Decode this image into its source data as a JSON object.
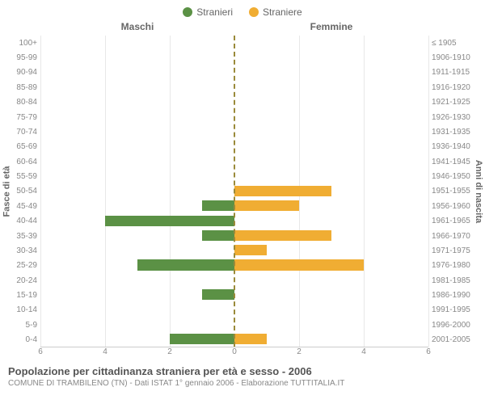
{
  "legend": {
    "male": "Stranieri",
    "female": "Straniere"
  },
  "colors": {
    "male": "#5b9145",
    "female": "#f0ad33",
    "grid": "#e8e8e8",
    "center": "#9a8a3a",
    "text": "#666666",
    "muted": "#888888",
    "bg": "#ffffff"
  },
  "headers": {
    "left": "Maschi",
    "right": "Femmine"
  },
  "axis_labels": {
    "left": "Fasce di età",
    "right": "Anni di nascita"
  },
  "x_axis": {
    "max": 6,
    "ticks_left": [
      6,
      4,
      2,
      0
    ],
    "ticks_right": [
      0,
      2,
      4,
      6
    ]
  },
  "age_groups": [
    "100+",
    "95-99",
    "90-94",
    "85-89",
    "80-84",
    "75-79",
    "70-74",
    "65-69",
    "60-64",
    "55-59",
    "50-54",
    "45-49",
    "40-44",
    "35-39",
    "30-34",
    "25-29",
    "20-24",
    "15-19",
    "10-14",
    "5-9",
    "0-4"
  ],
  "birth_years": [
    "≤ 1905",
    "1906-1910",
    "1911-1915",
    "1916-1920",
    "1921-1925",
    "1926-1930",
    "1931-1935",
    "1936-1940",
    "1941-1945",
    "1946-1950",
    "1951-1955",
    "1956-1960",
    "1961-1965",
    "1966-1970",
    "1971-1975",
    "1976-1980",
    "1981-1985",
    "1986-1990",
    "1991-1995",
    "1996-2000",
    "2001-2005"
  ],
  "male_values": [
    0,
    0,
    0,
    0,
    0,
    0,
    0,
    0,
    0,
    0,
    0,
    1,
    4,
    1,
    0,
    3,
    0,
    1,
    0,
    0,
    2
  ],
  "female_values": [
    0,
    0,
    0,
    0,
    0,
    0,
    0,
    0,
    0,
    0,
    3,
    2,
    0,
    3,
    1,
    4,
    0,
    0,
    0,
    0,
    1
  ],
  "footer": {
    "title": "Popolazione per cittadinanza straniera per età e sesso - 2006",
    "sub": "COMUNE DI TRAMBILENO (TN) - Dati ISTAT 1° gennaio 2006 - Elaborazione TUTTITALIA.IT"
  },
  "fonts": {
    "legend": 12,
    "headers": 12,
    "axis": 11,
    "ticks": 10,
    "title": 13,
    "sub": 10
  }
}
